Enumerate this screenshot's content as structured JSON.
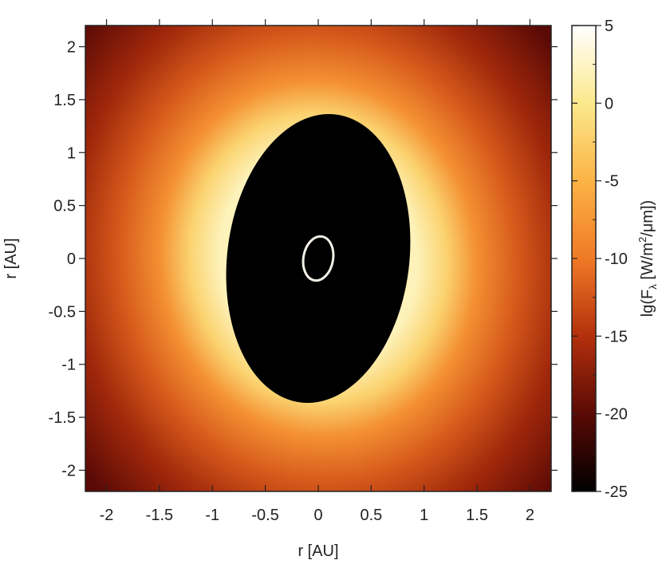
{
  "chart_data": {
    "type": "heatmap",
    "title": "",
    "xlabel": "r [AU]",
    "ylabel": "r [AU]",
    "xlim": [
      -2.2,
      2.2
    ],
    "ylim": [
      -2.2,
      2.2
    ],
    "xticks": [
      -2,
      -1.5,
      -1,
      -0.5,
      0,
      0.5,
      1,
      1.5,
      2
    ],
    "xtick_labels": [
      "-2",
      "-1.5",
      "-1",
      "-0.5",
      "0",
      "0.5",
      "1",
      "1.5",
      "2"
    ],
    "yticks": [
      2,
      1.5,
      1,
      0.5,
      0,
      -0.5,
      -1,
      -1.5,
      -2
    ],
    "ytick_labels": [
      "2",
      "1.5",
      "1",
      "0.5",
      "0",
      "-0.5",
      "-1",
      "-1.5",
      "-2"
    ],
    "colorbar": {
      "label_prefix": "lg(F",
      "label_sub": "λ",
      "label_unit_pre": " [W/m",
      "label_sup": "2",
      "label_unit_post": "/μm])",
      "range": [
        -25,
        5
      ],
      "ticks": [
        5,
        0,
        -5,
        -10,
        -15,
        -20,
        -25
      ],
      "tick_labels": [
        "5",
        "0",
        "-5",
        "-10",
        "-15",
        "-20",
        "-25"
      ],
      "colormap": [
        "#000000",
        "#5a0a06",
        "#b3300c",
        "#f07a26",
        "#fbb346",
        "#fbe98c",
        "#ffffff"
      ]
    },
    "inner_region": {
      "shape": "ellipse",
      "center": [
        0.0,
        0.0
      ],
      "semi_axis_major_au": 1.37,
      "semi_axis_minor_au": 0.86,
      "tilt_deg_from_vertical": 7,
      "fill": "#000000"
    },
    "inner_orbit": {
      "shape": "ellipse",
      "center": [
        0.0,
        0.0
      ],
      "semi_axis_major_au": 0.21,
      "semi_axis_minor_au": 0.14,
      "tilt_deg_from_vertical": 10,
      "stroke": "#f3f0e6"
    },
    "flux_radial_profile": {
      "r_au": [
        1.0,
        1.3,
        1.6,
        2.0,
        2.5,
        3.1
      ],
      "lg_flux": [
        2,
        -2,
        -8,
        -12,
        -16,
        -20
      ]
    }
  }
}
